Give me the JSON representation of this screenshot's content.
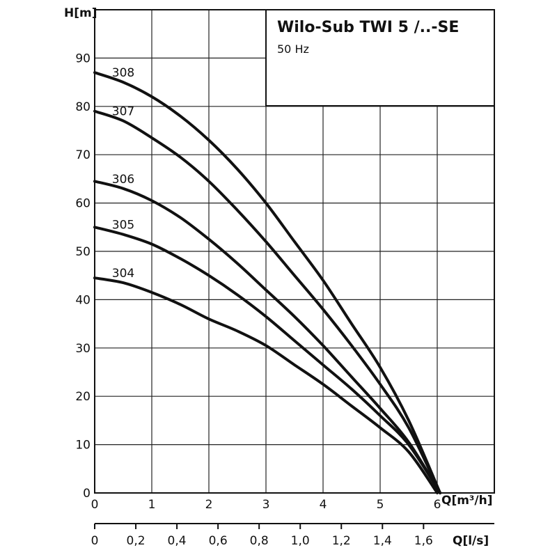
{
  "chart_data": {
    "type": "line",
    "title": "Wilo-Sub TWI 5 /..-SE",
    "subtitle": "50 Hz",
    "ylabel": "H[m]",
    "xlabel": "Q[m³/h]",
    "x2label": "Q[l/s]",
    "xlim": [
      0,
      7
    ],
    "ylim": [
      0,
      100
    ],
    "x_ticks": [
      "0",
      "1",
      "2",
      "3",
      "4",
      "5",
      "6"
    ],
    "y_ticks": [
      "0",
      "10",
      "20",
      "30",
      "40",
      "50",
      "60",
      "70",
      "80",
      "90"
    ],
    "x2_ticks": [
      "0",
      "0,2",
      "0,4",
      "0,6",
      "0,8",
      "1,0",
      "1,2",
      "1,4",
      "1,6"
    ],
    "grid": true,
    "series": [
      {
        "name": "308",
        "x": [
          0,
          0.5,
          1,
          1.5,
          2,
          2.5,
          3,
          3.5,
          4,
          4.5,
          5,
          5.5,
          6.05
        ],
        "values": [
          87,
          85,
          82,
          78,
          73,
          67,
          60,
          52,
          44,
          35,
          26,
          15,
          0
        ]
      },
      {
        "name": "307",
        "x": [
          0,
          0.5,
          1,
          1.5,
          2,
          2.5,
          3,
          3.5,
          4,
          4.5,
          5,
          5.5,
          6.05
        ],
        "values": [
          79,
          77,
          73.5,
          69.5,
          64.5,
          58.5,
          52,
          45,
          38,
          30.5,
          22.5,
          13.5,
          0
        ]
      },
      {
        "name": "306",
        "x": [
          0,
          0.5,
          1,
          1.5,
          2,
          2.5,
          3,
          3.5,
          4,
          4.5,
          5,
          5.5,
          6.05
        ],
        "values": [
          64.5,
          63,
          60.5,
          57,
          52.5,
          47.5,
          42,
          36.5,
          30.5,
          24,
          17.5,
          10.5,
          0
        ]
      },
      {
        "name": "305",
        "x": [
          0,
          0.5,
          1,
          1.5,
          2,
          2.5,
          3,
          3.5,
          4,
          4.5,
          5,
          5.5,
          6.05
        ],
        "values": [
          55,
          53.5,
          51.5,
          48.5,
          45,
          41,
          36.5,
          31.5,
          26.5,
          21.5,
          16,
          10,
          0
        ]
      },
      {
        "name": "304",
        "x": [
          0,
          0.5,
          1,
          1.5,
          2,
          2.5,
          3,
          3.5,
          4,
          4.5,
          5,
          5.5,
          6.0
        ],
        "values": [
          44.5,
          43.5,
          41.5,
          39,
          36,
          33.5,
          30.5,
          26.5,
          22.5,
          18,
          13.5,
          8.5,
          0
        ]
      }
    ]
  }
}
